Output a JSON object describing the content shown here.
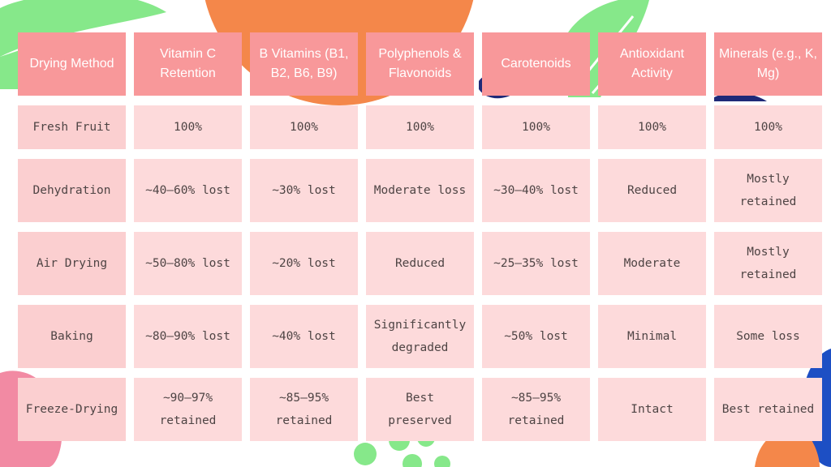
{
  "table": {
    "headers": [
      "Drying Method",
      "Vitamin C Retention",
      "B Vitamins (B1, B2, B6, B9)",
      "Polyphenols & Flavonoids",
      "Carotenoids",
      "Antioxidant Activity",
      "Minerals (e.g., K, Mg)"
    ],
    "rows": [
      [
        "Fresh Fruit",
        "100%",
        "100%",
        "100%",
        "100%",
        "100%",
        "100%"
      ],
      [
        "Dehydration",
        "~40–60% lost",
        "~30% lost",
        "Moderate loss",
        "~30–40% lost",
        "Reduced",
        "Mostly retained"
      ],
      [
        "Air Drying",
        "~50–80% lost",
        "~20% lost",
        "Reduced",
        "~25–35% lost",
        "Moderate",
        "Mostly retained"
      ],
      [
        "Baking",
        "~80–90% lost",
        "~40% lost",
        "Significantly degraded",
        "~50% lost",
        "Minimal",
        "Some loss"
      ],
      [
        "Freeze-Drying",
        "~90–97% retained",
        "~85–95% retained",
        "Best preserved",
        "~85–95% retained",
        "Intact",
        "Best retained"
      ]
    ]
  },
  "colors": {
    "header_bg": "#f8989a",
    "cell_bg": "#fddadb",
    "accent_orange": "#f4874a",
    "accent_green": "#86e88a",
    "accent_navy": "#1f2a78",
    "accent_blue": "#1d4fc4",
    "accent_pink": "#f28aa3"
  }
}
